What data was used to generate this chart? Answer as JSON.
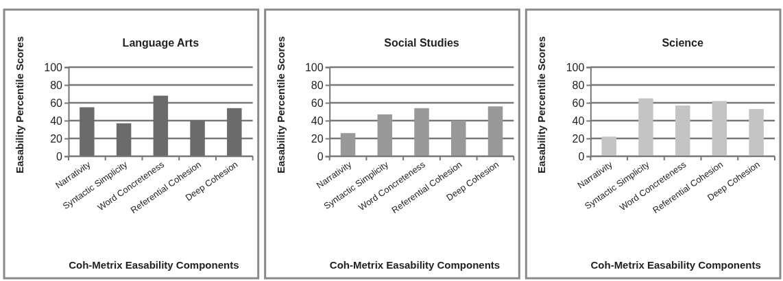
{
  "chart_data": [
    {
      "type": "bar",
      "title": "Language Arts",
      "xlabel": "Coh-Metrix Easability Components",
      "ylabel": "Easability Percentile Scores",
      "categories": [
        "Narrativity",
        "Syntactic Simplicity",
        "Word Concreteness",
        "Referential Cohesion",
        "Deep Cohesion"
      ],
      "values": [
        55,
        37,
        68,
        40,
        54
      ],
      "color": "#6b6b6b",
      "ylim": [
        0,
        100
      ],
      "yticks": [
        0,
        20,
        40,
        60,
        80,
        100
      ],
      "grid": "y"
    },
    {
      "type": "bar",
      "title": "Social Studies",
      "xlabel": "Coh-Metrix Easability Components",
      "ylabel": "Easability Percentile Scores",
      "categories": [
        "Narrativity",
        "Syntactic Simplicity",
        "Word Concreteness",
        "Referential Cohesion",
        "Deep Cohesion"
      ],
      "values": [
        26,
        47,
        54,
        40,
        56
      ],
      "color": "#999999",
      "ylim": [
        0,
        100
      ],
      "yticks": [
        0,
        20,
        40,
        60,
        80,
        100
      ],
      "grid": "y"
    },
    {
      "type": "bar",
      "title": "Science",
      "xlabel": "Coh-Metrix Easability Components",
      "ylabel": "Easability Percentile Scores",
      "categories": [
        "Narrativity",
        "Syntactic Simplicity",
        "Word Concreteness",
        "Referential Cohesion",
        "Deep Cohesion"
      ],
      "values": [
        22,
        65,
        57,
        62,
        53
      ],
      "color": "#c4c4c4",
      "ylim": [
        0,
        100
      ],
      "yticks": [
        0,
        20,
        40,
        60,
        80,
        100
      ],
      "grid": "y"
    }
  ]
}
